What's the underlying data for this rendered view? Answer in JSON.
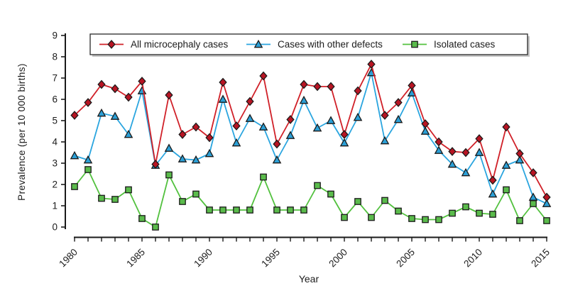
{
  "chart_data": {
    "type": "line",
    "title": "",
    "xlabel": "Year",
    "ylabel": "Prevalence (per 10 000 births)",
    "x": [
      1980,
      1981,
      1982,
      1983,
      1984,
      1985,
      1986,
      1987,
      1988,
      1989,
      1990,
      1991,
      1992,
      1993,
      1994,
      1995,
      1996,
      1997,
      1998,
      1999,
      2000,
      2001,
      2002,
      2003,
      2004,
      2005,
      2006,
      2007,
      2008,
      2009,
      2010,
      2011,
      2012,
      2013,
      2014,
      2015
    ],
    "x_tick_labels": [
      1980,
      1985,
      1990,
      1995,
      2000,
      2005,
      2010,
      2015
    ],
    "y_ticks": [
      0,
      1,
      2,
      3,
      4,
      5,
      6,
      7,
      8,
      9
    ],
    "ylim": [
      0,
      9
    ],
    "grid": false,
    "legend_position": "top-inside-box",
    "series": [
      {
        "name": "All microcephaly cases",
        "marker": "diamond",
        "marker_icon": "diamond-marker-icon",
        "line_color": "#d02028",
        "fill_color": "#b81423",
        "values": [
          5.25,
          5.85,
          6.7,
          6.5,
          6.1,
          6.85,
          2.95,
          6.2,
          4.35,
          4.7,
          4.2,
          6.8,
          4.75,
          5.9,
          7.1,
          3.9,
          5.05,
          6.7,
          6.6,
          6.6,
          4.35,
          6.4,
          7.65,
          5.25,
          5.85,
          6.65,
          4.85,
          4.0,
          3.55,
          3.5,
          4.15,
          2.2,
          4.7,
          3.45,
          2.55,
          1.4
        ]
      },
      {
        "name": "Cases with other defects",
        "marker": "triangle",
        "marker_icon": "triangle-marker-icon",
        "line_color": "#2aa5df",
        "fill_color": "#2b9fd6",
        "values": [
          3.35,
          3.15,
          5.35,
          5.2,
          4.35,
          6.4,
          2.9,
          3.7,
          3.2,
          3.15,
          3.45,
          6.0,
          3.95,
          5.1,
          4.7,
          3.15,
          4.3,
          5.95,
          4.65,
          5.0,
          3.95,
          5.15,
          7.25,
          4.05,
          5.05,
          6.3,
          4.5,
          3.6,
          2.95,
          2.55,
          3.5,
          1.55,
          2.9,
          3.15,
          1.4,
          1.1
        ]
      },
      {
        "name": "Isolated cases",
        "marker": "square",
        "marker_icon": "square-marker-icon",
        "line_color": "#52c13e",
        "fill_color": "#5abb4b",
        "values": [
          1.9,
          2.7,
          1.35,
          1.3,
          1.75,
          0.4,
          0.0,
          2.45,
          1.2,
          1.55,
          0.8,
          0.8,
          0.8,
          0.8,
          2.35,
          0.8,
          0.8,
          0.8,
          1.95,
          1.55,
          0.45,
          1.2,
          0.45,
          1.25,
          0.75,
          0.4,
          0.35,
          0.35,
          0.65,
          0.95,
          0.65,
          0.6,
          1.75,
          0.3,
          1.1,
          0.3
        ]
      }
    ],
    "axis_color": "#1a1a1a",
    "text_color": "#1c1c1c",
    "legend_border_color": "#2a2a2a",
    "legend_shadow_color": "#c4c4c4"
  }
}
